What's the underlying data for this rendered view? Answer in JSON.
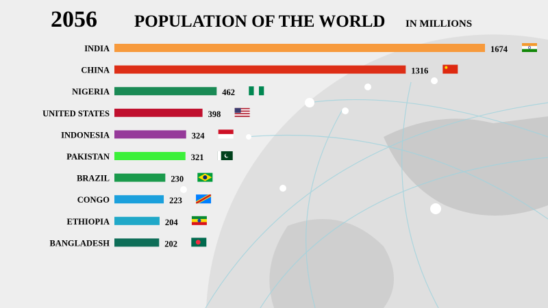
{
  "chart_data": {
    "type": "bar",
    "orientation": "horizontal",
    "year": "2056",
    "title": "POPULATION OF THE WORLD",
    "subtitle": "IN MILLIONS",
    "categories": [
      "INDIA",
      "CHINA",
      "NIGERIA",
      "UNITED STATES",
      "INDONESIA",
      "PAKISTAN",
      "BRAZIL",
      "CONGO",
      "ETHIOPIA",
      "BANGLADESH"
    ],
    "values": [
      1674,
      1316,
      462,
      398,
      324,
      321,
      230,
      223,
      204,
      202
    ],
    "colors": [
      "#f79a3c",
      "#dd2e17",
      "#1a8a55",
      "#c0102e",
      "#963a9a",
      "#3cf03a",
      "#1a9a4c",
      "#1ba0dc",
      "#20a8c8",
      "#0e6e58"
    ],
    "flags": [
      "india-flag",
      "china-flag",
      "nigeria-flag",
      "usa-flag",
      "indonesia-flag",
      "pakistan-flag",
      "brazil-flag",
      "congo-flag",
      "ethiopia-flag",
      "bangladesh-flag"
    ],
    "xlim": [
      0,
      1674
    ],
    "grid": false,
    "legend": "none"
  }
}
